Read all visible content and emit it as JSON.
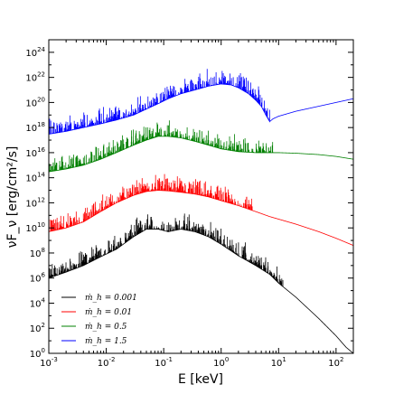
{
  "chart_data": {
    "type": "line",
    "title": "",
    "xlabel": "E [keV]",
    "ylabel": "νF_ν [erg/cm²/s]",
    "xscale": "log",
    "yscale": "log",
    "xlim": [
      0.001,
      200
    ],
    "ylim": [
      1,
      10000000000000000000000000
    ],
    "x_ticks": [
      0.001,
      0.01,
      0.1,
      1,
      10,
      100
    ],
    "x_tick_labels": [
      {
        "base": "10",
        "exp": "-3"
      },
      {
        "base": "10",
        "exp": "-2"
      },
      {
        "base": "10",
        "exp": "-1"
      },
      {
        "base": "10",
        "exp": "0"
      },
      {
        "base": "10",
        "exp": "1"
      },
      {
        "base": "10",
        "exp": "2"
      }
    ],
    "y_ticks": [
      1,
      100,
      10000,
      1000000,
      100000000,
      10000000000,
      1000000000000,
      100000000000000,
      10000000000000000,
      1000000000000000000,
      100000000000000000000,
      10000000000000000000000,
      1000000000000000000000000
    ],
    "y_tick_labels": [
      {
        "base": "10",
        "exp": "0"
      },
      {
        "base": "10",
        "exp": "2"
      },
      {
        "base": "10",
        "exp": "4"
      },
      {
        "base": "10",
        "exp": "6"
      },
      {
        "base": "10",
        "exp": "8"
      },
      {
        "base": "10",
        "exp": "10"
      },
      {
        "base": "10",
        "exp": "12"
      },
      {
        "base": "10",
        "exp": "14"
      },
      {
        "base": "10",
        "exp": "16"
      },
      {
        "base": "10",
        "exp": "18"
      },
      {
        "base": "10",
        "exp": "20"
      },
      {
        "base": "10",
        "exp": "22"
      },
      {
        "base": "10",
        "exp": "24"
      }
    ],
    "legend_position": "lower-left",
    "grid": false,
    "series": [
      {
        "name": "ṁ_h = 0.001",
        "color": "#000000",
        "x": [
          0.001,
          0.002,
          0.004,
          0.008,
          0.015,
          0.03,
          0.05,
          0.08,
          0.12,
          0.2,
          0.35,
          0.6,
          1.0,
          2.0,
          4.0,
          7.0,
          10,
          20,
          50,
          100,
          150,
          200
        ],
        "y": [
          1000000.0,
          3000000.0,
          10000000.0,
          50000000.0,
          200000000.0,
          2000000000.0,
          8000000000.0,
          8000000000.0,
          5000000000.0,
          8000000000.0,
          5000000000.0,
          2000000000.0,
          500000000.0,
          60000000.0,
          10000000.0,
          2000000.0,
          400000.0,
          30000.0,
          600,
          25,
          3,
          1
        ]
      },
      {
        "name": "ṁ_h = 0.01",
        "color": "#ff0000",
        "x": [
          0.001,
          0.002,
          0.004,
          0.008,
          0.015,
          0.03,
          0.05,
          0.08,
          0.12,
          0.2,
          0.35,
          0.6,
          1.0,
          2.0,
          4.0,
          7.0,
          10,
          20,
          50,
          100,
          200
        ],
        "y": [
          5000000000.0,
          10000000000.0,
          30000000000.0,
          200000000000.0,
          1000000000000.0,
          4000000000000.0,
          8000000000000.0,
          10000000000000.0,
          9000000000000.0,
          7000000000000.0,
          5000000000000.0,
          3000000000000.0,
          1500000000000.0,
          600000000000.0,
          200000000000.0,
          80000000000.0,
          50000000000.0,
          20000000000.0,
          5000000000.0,
          1500000000.0,
          400000000.0
        ]
      },
      {
        "name": "ṁ_h = 0.5",
        "color": "#008000",
        "x": [
          0.001,
          0.002,
          0.004,
          0.008,
          0.015,
          0.03,
          0.05,
          0.08,
          0.12,
          0.2,
          0.35,
          0.6,
          1.0,
          2.0,
          4.0,
          7.0,
          10,
          20,
          50,
          100,
          200
        ],
        "y": [
          300000000000000.0,
          500000000000000.0,
          1000000000000000.0,
          3000000000000000.0,
          1e+16,
          4e+16,
          1e+17,
          2e+17,
          2e+17,
          1.5e+17,
          8e+16,
          4e+16,
          2e+16,
          1.2e+16,
          1e+16,
          1e+16,
          1e+16,
          9000000000000000.0,
          7000000000000000.0,
          5000000000000000.0,
          3000000000000000.0
        ]
      },
      {
        "name": "ṁ_h = 1.5",
        "color": "#0000ff",
        "x": [
          0.001,
          0.002,
          0.004,
          0.008,
          0.015,
          0.03,
          0.05,
          0.08,
          0.12,
          0.2,
          0.35,
          0.6,
          1.0,
          1.5,
          2.0,
          3.0,
          4.0,
          5.0,
          6.0,
          7.0,
          8.0,
          10,
          20,
          50,
          100,
          200
        ],
        "y": [
          3e+17,
          5e+17,
          1e+18,
          2e+18,
          4e+18,
          1e+19,
          3e+19,
          8e+19,
          2e+20,
          5e+20,
          1e+21,
          2e+21,
          3e+21,
          2.5e+21,
          1.5e+21,
          5e+20,
          1.5e+20,
          5e+19,
          1e+19,
          3e+18,
          5e+18,
          8e+18,
          2e+19,
          5e+19,
          1e+20,
          2e+20
        ]
      }
    ]
  }
}
